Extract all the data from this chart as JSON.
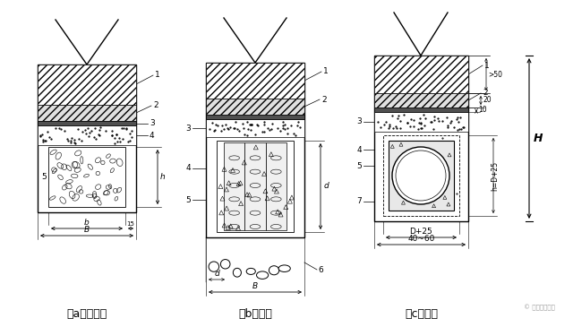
{
  "bg_color": "#ffffff",
  "caption_a": "（a）暗沟式",
  "caption_b": "（b）洞式",
  "caption_c": "（c）管式",
  "watermark": "© 蜀龙路桥市政"
}
